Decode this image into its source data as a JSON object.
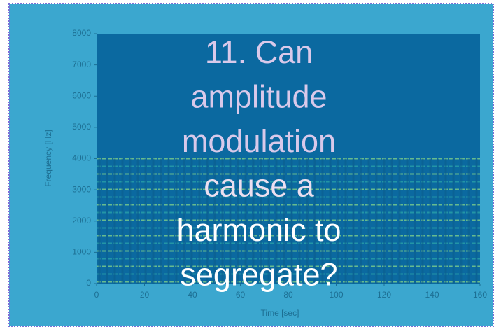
{
  "chart_data": {
    "type": "spectrogram",
    "title_lines": [
      "11. Can",
      "amplitude",
      "modulation",
      "cause a",
      "harmonic to",
      "segregate?"
    ],
    "xlabel": "Time [sec]",
    "ylabel": "Frequency [Hz]",
    "xlim": [
      0,
      160
    ],
    "xticks": [
      0,
      20,
      40,
      60,
      80,
      100,
      120,
      140,
      160
    ],
    "ylim": [
      0,
      8000
    ],
    "yticks": [
      0,
      1000,
      2000,
      3000,
      4000,
      5000,
      6000,
      7000,
      8000
    ]
  }
}
